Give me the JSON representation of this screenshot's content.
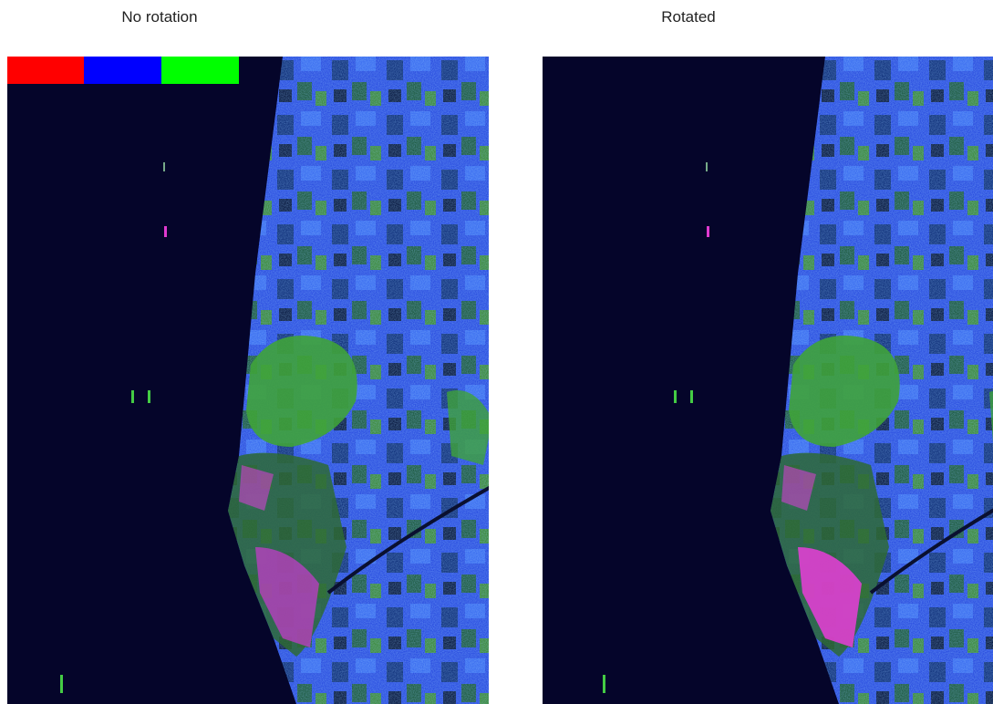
{
  "panels": [
    {
      "title": "No rotation"
    },
    {
      "title": "Rotated"
    }
  ]
}
